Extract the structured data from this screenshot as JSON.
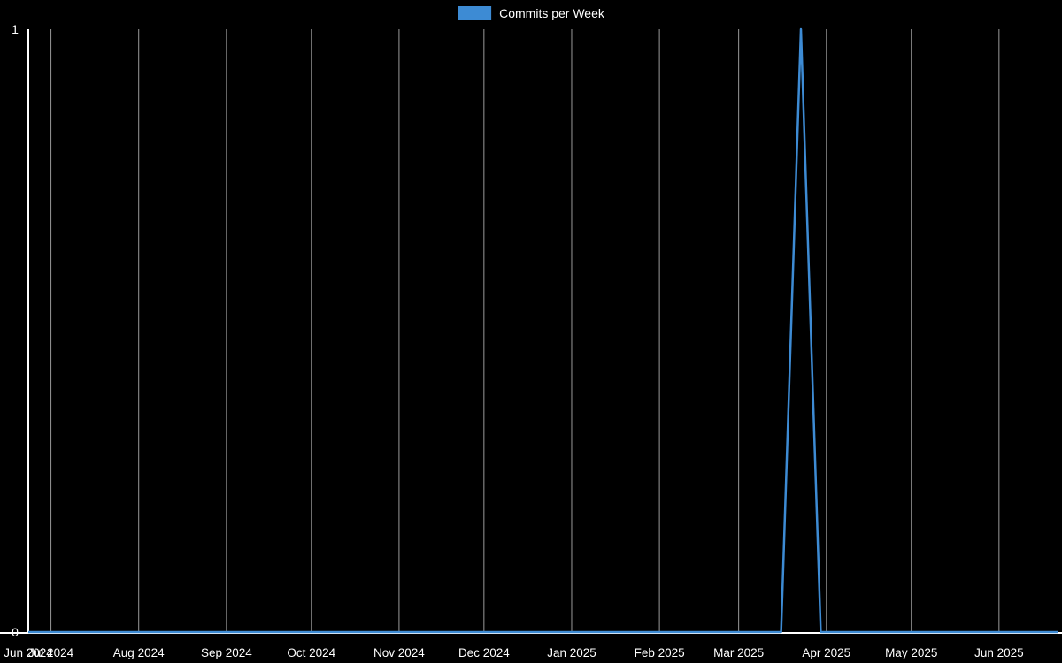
{
  "chart_data": {
    "type": "line",
    "title": "",
    "xlabel": "",
    "ylabel": "",
    "legend_label": "Commits per Week",
    "legend_position": "top-center",
    "grid": true,
    "background_color": "#000000",
    "axis_color": "#ffffff",
    "text_color": "#ffffff",
    "grid_color": "#9a9a9a",
    "line_color": "#3d8bd4",
    "ylim": [
      0,
      1
    ],
    "y_ticks": [
      0,
      1
    ],
    "x_start_date": "2024-06-23",
    "x_end_date": "2025-06-22",
    "x_ticks": [
      {
        "label": "Jun 2024",
        "date": "2024-06-23"
      },
      {
        "label": "Jul 2024",
        "date": "2024-07-01"
      },
      {
        "label": "Aug 2024",
        "date": "2024-08-01"
      },
      {
        "label": "Sep 2024",
        "date": "2024-09-01"
      },
      {
        "label": "Oct 2024",
        "date": "2024-10-01"
      },
      {
        "label": "Nov 2024",
        "date": "2024-11-01"
      },
      {
        "label": "Dec 2024",
        "date": "2024-12-01"
      },
      {
        "label": "Jan 2025",
        "date": "2025-01-01"
      },
      {
        "label": "Feb 2025",
        "date": "2025-02-01"
      },
      {
        "label": "Mar 2025",
        "date": "2025-03-01"
      },
      {
        "label": "Apr 2025",
        "date": "2025-04-01"
      },
      {
        "label": "May 2025",
        "date": "2025-05-01"
      },
      {
        "label": "Jun 2025",
        "date": "2025-06-01"
      }
    ],
    "series": [
      {
        "name": "Commits per Week",
        "start_date": "2024-06-23",
        "interval_days": 7,
        "peak_date": "2025-03-23",
        "values": [
          0,
          0,
          0,
          0,
          0,
          0,
          0,
          0,
          0,
          0,
          0,
          0,
          0,
          0,
          0,
          0,
          0,
          0,
          0,
          0,
          0,
          0,
          0,
          0,
          0,
          0,
          0,
          0,
          0,
          0,
          0,
          0,
          0,
          0,
          0,
          0,
          0,
          0,
          0,
          1,
          0,
          0,
          0,
          0,
          0,
          0,
          0,
          0,
          0,
          0,
          0,
          0,
          0
        ]
      }
    ]
  }
}
